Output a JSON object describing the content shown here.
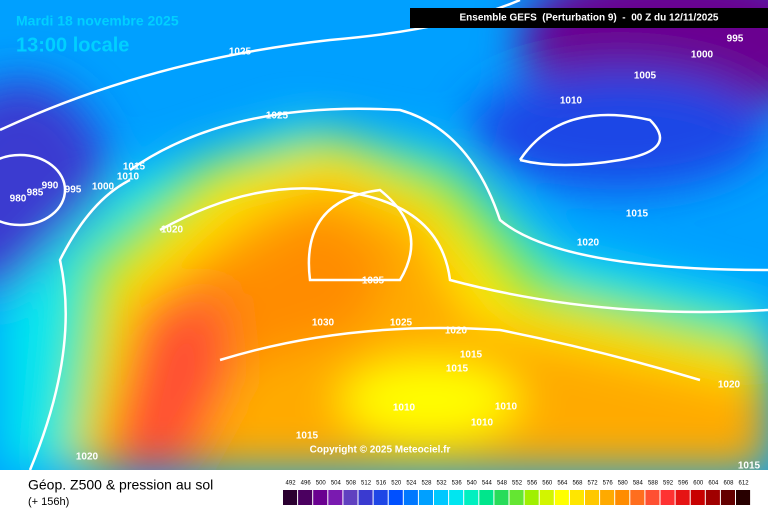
{
  "date_line": "Mardi 18 novembre 2025",
  "time_line": "13:00 locale",
  "header": "Ensemble GEFS  (Perturbation 9)  -  00 Z du 12/11/2025",
  "copyright": "Copyright © 2025 Meteociel.fr",
  "footer": {
    "title": "Géop. Z500 & pression au sol",
    "subtitle": "(+ 156h)"
  },
  "isobar_labels": [
    1025,
    1025,
    1015,
    1010,
    1000,
    990,
    995,
    985,
    980,
    1020,
    1035,
    1030,
    1025,
    1020,
    1015,
    1015,
    1010,
    1010,
    1010,
    1015,
    1020,
    1010,
    1005,
    1000,
    995,
    1015,
    1020,
    1020,
    1015
  ],
  "legend": {
    "values": [
      492,
      496,
      500,
      504,
      508,
      512,
      516,
      520,
      524,
      528,
      532,
      536,
      540,
      544,
      548,
      552,
      556,
      560,
      564,
      568,
      572,
      576,
      580,
      584,
      588,
      592,
      596,
      600,
      604,
      608,
      612
    ],
    "colors": [
      "#2b0030",
      "#4b0060",
      "#6a0090",
      "#7a1ab0",
      "#6040c0",
      "#3a3ad0",
      "#1e46e6",
      "#0050ff",
      "#0078ff",
      "#00a0ff",
      "#00c8ff",
      "#00e6f0",
      "#00f0c0",
      "#00e68c",
      "#28dc5a",
      "#64e632",
      "#a0f000",
      "#d2f500",
      "#ffff00",
      "#ffe600",
      "#ffc800",
      "#ffaa00",
      "#ff8c00",
      "#ff6e1e",
      "#ff5032",
      "#ff3232",
      "#e61414",
      "#c80000",
      "#a00000",
      "#640000",
      "#280000"
    ]
  }
}
